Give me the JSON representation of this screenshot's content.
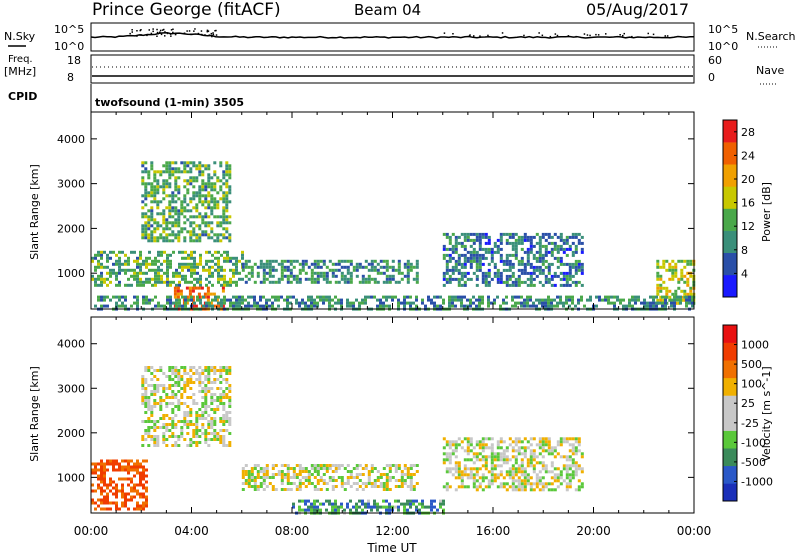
{
  "header": {
    "station": "Prince George (fitACF)",
    "beam": "Beam 04",
    "date": "05/Aug/2017"
  },
  "noise_panel": {
    "left_label": "N.Sky",
    "left_ticks": [
      "10^5",
      "10^0"
    ],
    "right_ticks": [
      "10^5",
      "10^0"
    ],
    "right_label": "N.Search"
  },
  "freq_panel": {
    "left_label_line1": "Freq.",
    "left_label_line2": "[MHz]",
    "left_ticks": [
      "18",
      "8"
    ],
    "right_ticks": [
      "60",
      "0"
    ],
    "right_label": "Nave"
  },
  "cpid_panel": {
    "left_label": "CPID",
    "program": "twofsound (1-min) 3505"
  },
  "x_axis": {
    "label": "Time UT",
    "ticks": [
      "00:00",
      "04:00",
      "08:00",
      "12:00",
      "16:00",
      "20:00",
      "00:00"
    ]
  },
  "colors": {
    "power_scale": [
      "#1a1aff",
      "#2a4fa8",
      "#3a8f7a",
      "#4aa84a",
      "#c8c800",
      "#f0a000",
      "#f06000",
      "#e81c1c"
    ],
    "velocity_scale": [
      "#1a2fb8",
      "#2a58c8",
      "#3a8a5a",
      "#5ac83a",
      "#c8c8c8",
      "#c8c8c8",
      "#f0b000",
      "#f07000",
      "#f03c00",
      "#e81010"
    ]
  },
  "chart_data": [
    {
      "type": "heatmap",
      "title": "",
      "xlabel": "",
      "ylabel": "Slant Range [km]",
      "yticks": [
        "1000",
        "2000",
        "3000",
        "4000"
      ],
      "ylim": [
        200,
        4600
      ],
      "xlim_hours": [
        0,
        24
      ],
      "colorbar": {
        "label": "Power [dB]",
        "ticks": [
          "4",
          "8",
          "12",
          "16",
          "20",
          "24",
          "28"
        ],
        "range": [
          0,
          30
        ]
      },
      "regions": [
        {
          "t": [
            2.0,
            5.5
          ],
          "r": [
            1700,
            3500
          ],
          "desc": "upper arc",
          "dominant": "12"
        },
        {
          "t": [
            0.0,
            6.0
          ],
          "r": [
            700,
            1500
          ],
          "desc": "morning band",
          "dominant": "12"
        },
        {
          "t": [
            3.3,
            5.3
          ],
          "r": [
            200,
            700
          ],
          "desc": "near-range strong",
          "dominant": "24"
        },
        {
          "t": [
            6.0,
            13.0
          ],
          "r": [
            800,
            1300
          ],
          "desc": "daytime band",
          "dominant": "10"
        },
        {
          "t": [
            14.0,
            19.5
          ],
          "r": [
            700,
            1900
          ],
          "desc": "afternoon arc",
          "dominant": "8"
        },
        {
          "t": [
            22.5,
            24.0
          ],
          "r": [
            300,
            1300
          ],
          "desc": "evening band",
          "dominant": "16"
        },
        {
          "t": [
            0.0,
            24.0
          ],
          "r": [
            200,
            500
          ],
          "desc": "near-range ground",
          "dominant": "10"
        }
      ]
    },
    {
      "type": "heatmap",
      "title": "",
      "xlabel": "Time UT",
      "ylabel": "Slant Range [km]",
      "yticks": [
        "1000",
        "2000",
        "3000",
        "4000"
      ],
      "ylim": [
        200,
        4600
      ],
      "xlim_hours": [
        0,
        24
      ],
      "colorbar": {
        "label": "Velocity [m s^-1]",
        "ticks": [
          "1000",
          "500",
          "100",
          "25",
          "-25",
          "-100",
          "-500",
          "-1000"
        ],
        "range": [
          -1200,
          1200
        ]
      },
      "regions": [
        {
          "t": [
            0.0,
            2.2
          ],
          "r": [
            300,
            1400
          ],
          "desc": "early receding flow",
          "dominant": "-300"
        },
        {
          "t": [
            2.0,
            5.5
          ],
          "r": [
            1700,
            3500
          ],
          "desc": "upper arc low velocity",
          "dominant": "0"
        },
        {
          "t": [
            6.0,
            13.0
          ],
          "r": [
            700,
            1300
          ],
          "desc": "daytime band low velocity",
          "dominant": "0"
        },
        {
          "t": [
            14.0,
            19.5
          ],
          "r": [
            700,
            1900
          ],
          "desc": "afternoon arc low velocity",
          "dominant": "0"
        },
        {
          "t": [
            8.0,
            14.0
          ],
          "r": [
            200,
            500
          ],
          "desc": "near-range approaching",
          "dominant": "80"
        }
      ]
    }
  ]
}
